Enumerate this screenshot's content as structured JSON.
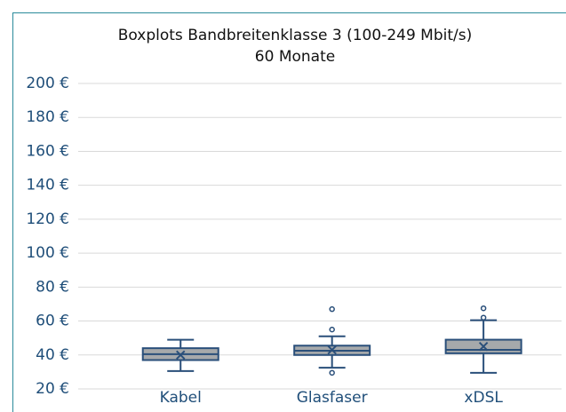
{
  "chart_data": {
    "type": "box",
    "title": "Boxplots Bandbreitenklasse 3 (100-249 Mbit/s)",
    "subtitle": "60 Monate",
    "categories": [
      "Kabel",
      "Glasfaser",
      "xDSL"
    ],
    "boxes": [
      {
        "min": 30.5,
        "q1": 37,
        "median": 40.5,
        "q3": 44,
        "max": 49,
        "mean": 40,
        "outliers": []
      },
      {
        "min": 32.5,
        "q1": 40,
        "median": 42.5,
        "q3": 45.5,
        "max": 51,
        "mean": 43,
        "outliers": [
          29.5,
          55,
          67
        ]
      },
      {
        "min": 29.5,
        "q1": 41,
        "median": 43,
        "q3": 49,
        "max": 60.5,
        "mean": 45,
        "outliers": [
          62,
          67.5
        ]
      }
    ],
    "color": "#a6a9ab",
    "line_color": "#2a4f7a",
    "ylim": [
      20,
      200
    ],
    "yticks": [
      {
        "value": 20,
        "label": "20 €"
      },
      {
        "value": 40,
        "label": "40 €"
      },
      {
        "value": 60,
        "label": "60 €"
      },
      {
        "value": 80,
        "label": "80 €"
      },
      {
        "value": 100,
        "label": "100 €"
      },
      {
        "value": 120,
        "label": "120 €"
      },
      {
        "value": 140,
        "label": "140 €"
      },
      {
        "value": 160,
        "label": "160 €"
      },
      {
        "value": 180,
        "label": "180 €"
      },
      {
        "value": 200,
        "label": "200 €"
      }
    ],
    "grid": true
  }
}
